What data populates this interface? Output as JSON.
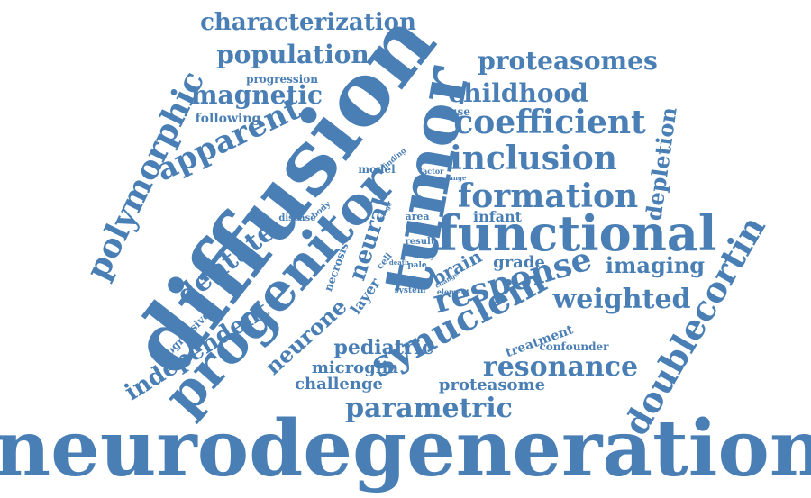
{
  "color": "#4a7fb5",
  "words": [
    {
      "t": "neurodegeneration"
    },
    {
      "t": "diffusion"
    },
    {
      "t": "tumor"
    },
    {
      "t": "progenitor"
    },
    {
      "t": "functional"
    },
    {
      "t": "polymorphic"
    },
    {
      "t": "doublecortin"
    },
    {
      "t": "synuclein"
    },
    {
      "t": "response"
    },
    {
      "t": "coefficient"
    },
    {
      "t": "inclusion"
    },
    {
      "t": "formation"
    },
    {
      "t": "characterization"
    },
    {
      "t": "population"
    },
    {
      "t": "proteasomes"
    },
    {
      "t": "childhood"
    },
    {
      "t": "magnetic"
    },
    {
      "t": "apparent"
    },
    {
      "t": "dentate"
    },
    {
      "t": "independent"
    },
    {
      "t": "neural"
    },
    {
      "t": "neurone"
    },
    {
      "t": "parametric"
    },
    {
      "t": "resonance"
    },
    {
      "t": "weighted"
    },
    {
      "t": "imaging"
    },
    {
      "t": "depletion"
    },
    {
      "t": "pediatric"
    },
    {
      "t": "microglia"
    },
    {
      "t": "challenge"
    },
    {
      "t": "proteasome"
    },
    {
      "t": "grade"
    },
    {
      "t": "brain"
    },
    {
      "t": "infant"
    },
    {
      "t": "progressive"
    },
    {
      "t": "following"
    },
    {
      "t": "progression"
    },
    {
      "t": "mouse"
    },
    {
      "t": "treatment"
    },
    {
      "t": "confounder"
    },
    {
      "t": "layer"
    },
    {
      "t": "necrosis"
    },
    {
      "t": "model"
    },
    {
      "t": "finding"
    },
    {
      "t": "factor"
    },
    {
      "t": "range"
    },
    {
      "t": "disease"
    },
    {
      "t": "body"
    },
    {
      "t": "area"
    },
    {
      "t": "result"
    },
    {
      "t": "study"
    },
    {
      "t": "cell"
    },
    {
      "t": "death"
    },
    {
      "t": "pale"
    },
    {
      "t": "system"
    },
    {
      "t": "element"
    },
    {
      "t": "change"
    },
    {
      "t": "stage"
    }
  ]
}
